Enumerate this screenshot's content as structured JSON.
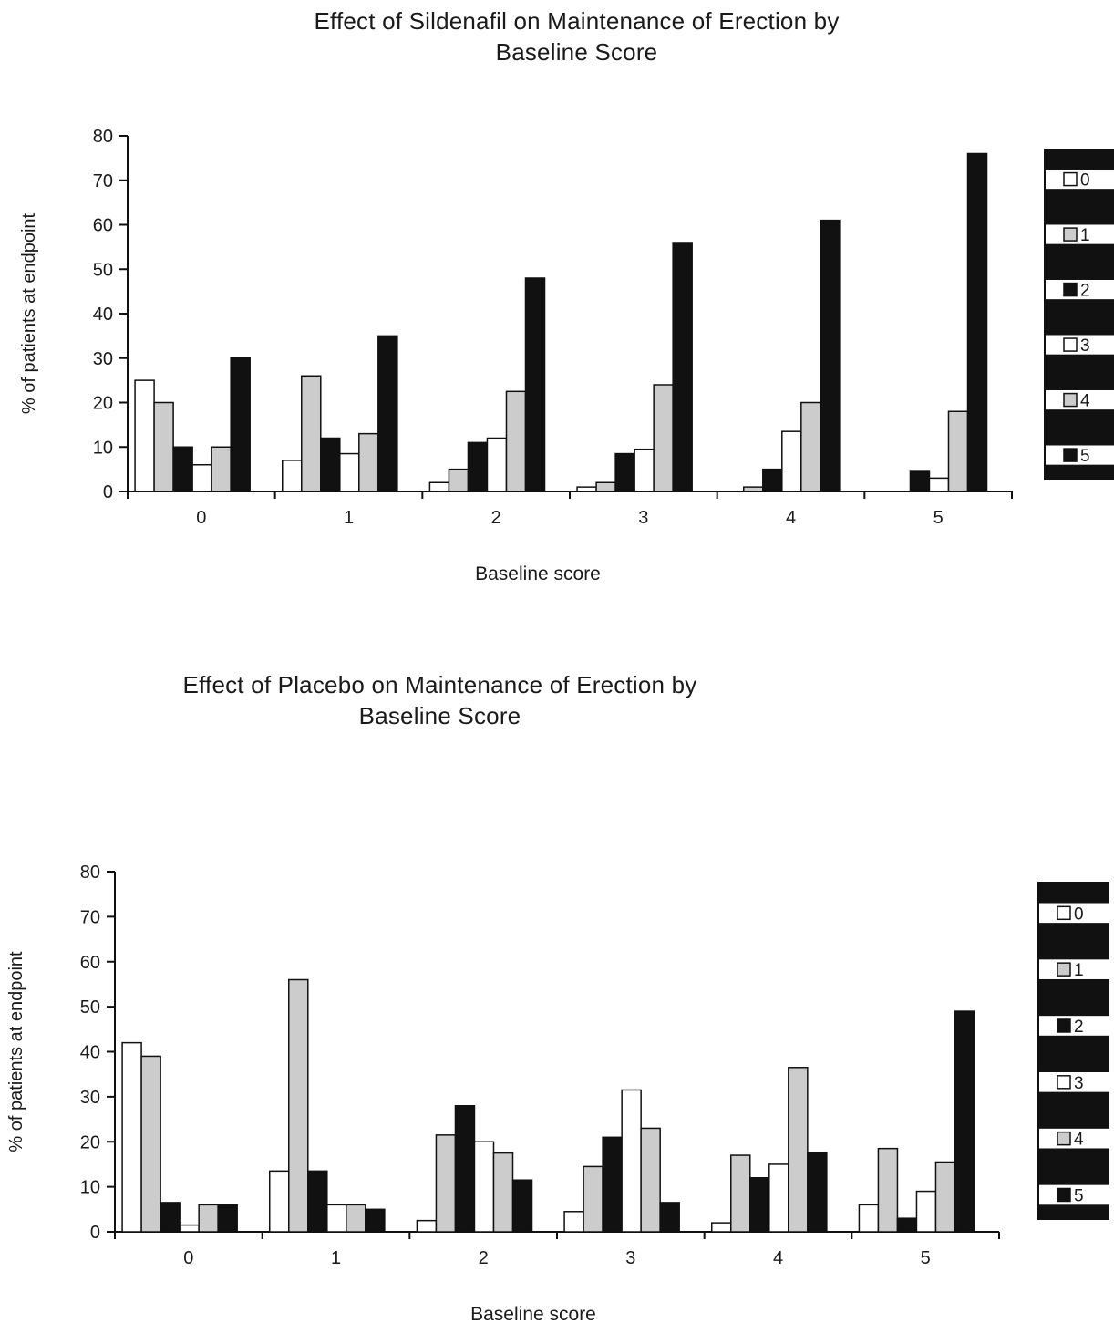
{
  "chart_data": [
    {
      "type": "bar",
      "title": "Effect of Sildenafil  on Maintenance of Erection by\nBaseline Score",
      "xlabel": "Baseline score",
      "ylabel": "% of patients at endpoint",
      "ylim": [
        0,
        80
      ],
      "yticks": [
        0,
        10,
        20,
        30,
        40,
        50,
        60,
        70,
        80
      ],
      "categories": [
        "0",
        "1",
        "2",
        "3",
        "4",
        "5"
      ],
      "legend_position": "right",
      "series": [
        {
          "name": "0",
          "fill": "#ffffff",
          "values": [
            25,
            7,
            2,
            1,
            0,
            0
          ]
        },
        {
          "name": "1",
          "fill": "#cccccc",
          "values": [
            20,
            26,
            5,
            2,
            1,
            0
          ]
        },
        {
          "name": "2",
          "fill": "#111111",
          "values": [
            10,
            12,
            11,
            8.5,
            5,
            4.5
          ]
        },
        {
          "name": "3",
          "fill": "#ffffff",
          "values": [
            6,
            8.5,
            12,
            9.5,
            13.5,
            3
          ]
        },
        {
          "name": "4",
          "fill": "#cccccc",
          "values": [
            10,
            13,
            22.5,
            24,
            20,
            18
          ]
        },
        {
          "name": "5",
          "fill": "#111111",
          "values": [
            30,
            35,
            48,
            56,
            61,
            76
          ]
        }
      ]
    },
    {
      "type": "bar",
      "title": "Effect of Placebo on Maintenance of Erection by\nBaseline Score",
      "xlabel": "Baseline score",
      "ylabel": "% of patients at endpoint",
      "ylim": [
        0,
        80
      ],
      "yticks": [
        0,
        10,
        20,
        30,
        40,
        50,
        60,
        70,
        80
      ],
      "categories": [
        "0",
        "1",
        "2",
        "3",
        "4",
        "5"
      ],
      "legend_position": "right",
      "series": [
        {
          "name": "0",
          "fill": "#ffffff",
          "values": [
            42,
            13.5,
            2.5,
            4.5,
            2,
            6
          ]
        },
        {
          "name": "1",
          "fill": "#cccccc",
          "values": [
            39,
            56,
            21.5,
            14.5,
            17,
            18.5
          ]
        },
        {
          "name": "2",
          "fill": "#111111",
          "values": [
            6.5,
            13.5,
            28,
            21,
            12,
            3
          ]
        },
        {
          "name": "3",
          "fill": "#ffffff",
          "values": [
            1.5,
            6,
            20,
            31.5,
            15,
            9
          ]
        },
        {
          "name": "4",
          "fill": "#cccccc",
          "values": [
            6,
            6,
            17.5,
            23,
            36.5,
            15.5
          ]
        },
        {
          "name": "5",
          "fill": "#111111",
          "values": [
            6,
            5,
            11.5,
            6.5,
            17.5,
            49
          ]
        }
      ]
    }
  ]
}
